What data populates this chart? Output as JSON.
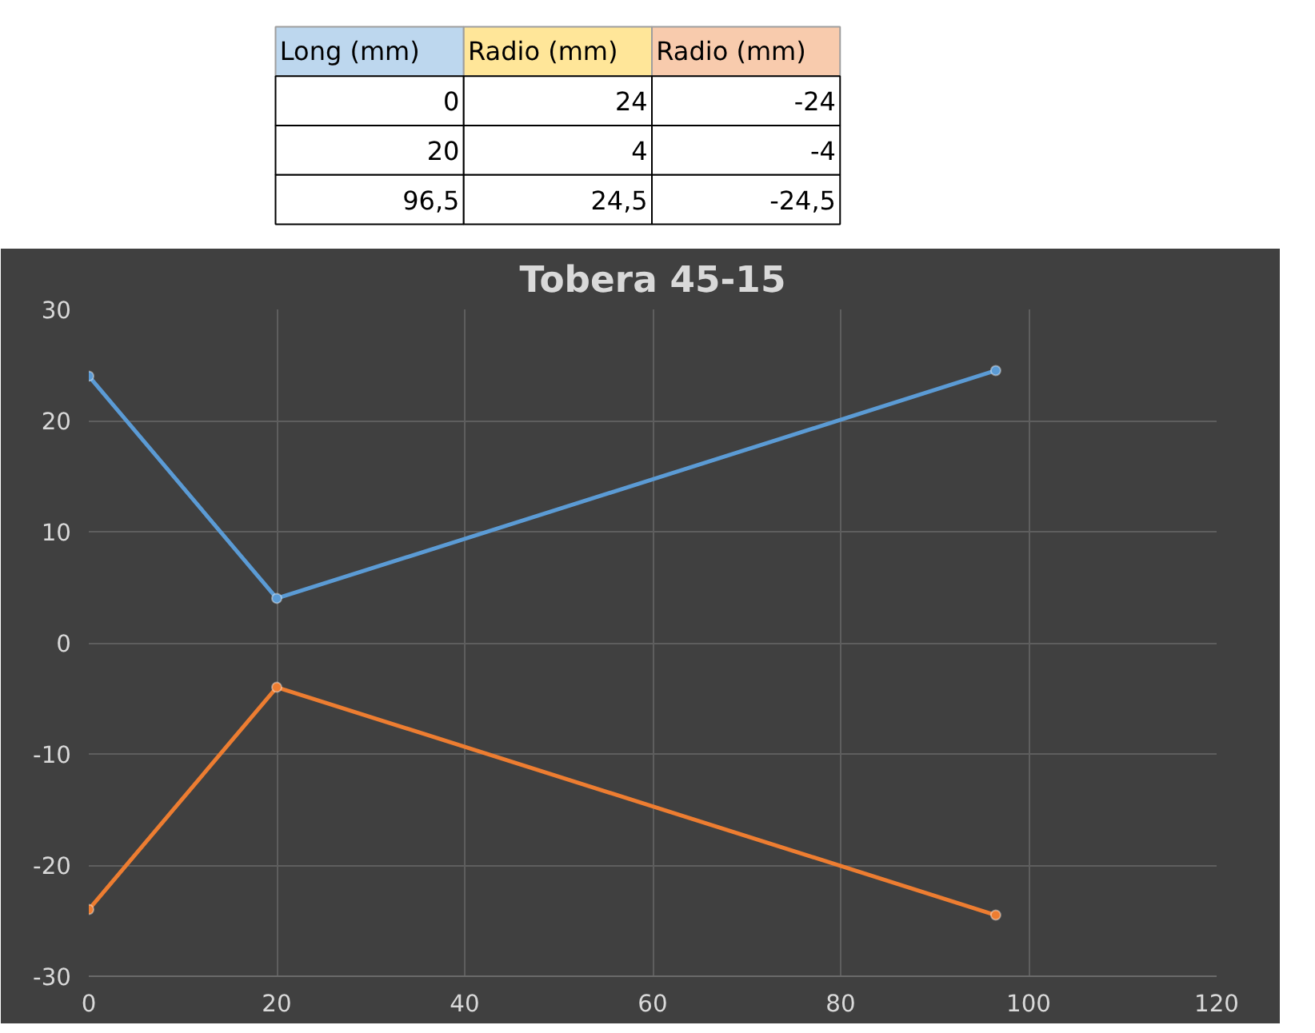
{
  "chart_data": {
    "type": "line",
    "title": "Tobera 45-15",
    "x": [
      0,
      20,
      96.5
    ],
    "series": [
      {
        "color": "#5b9bd5",
        "values": [
          24,
          4,
          24.5
        ]
      },
      {
        "color": "#ed7d31",
        "values": [
          -24,
          -4,
          -24.5
        ]
      }
    ],
    "annotations": [
      "Long (mm)",
      "Radio (mm)",
      "Radio (mm)",
      "0",
      "24",
      "-24",
      "20",
      "4",
      "-4",
      "96,5",
      "24,5",
      "-24,5"
    ],
    "xlim": [
      0,
      120
    ],
    "xticks": [
      0,
      20,
      40,
      60,
      80,
      100,
      120
    ],
    "ylim": [
      -30,
      30
    ],
    "yticks": [
      -30,
      -20,
      -10,
      0,
      10,
      20,
      30
    ],
    "grid": true,
    "marker": "circle",
    "line_style": "solid"
  }
}
